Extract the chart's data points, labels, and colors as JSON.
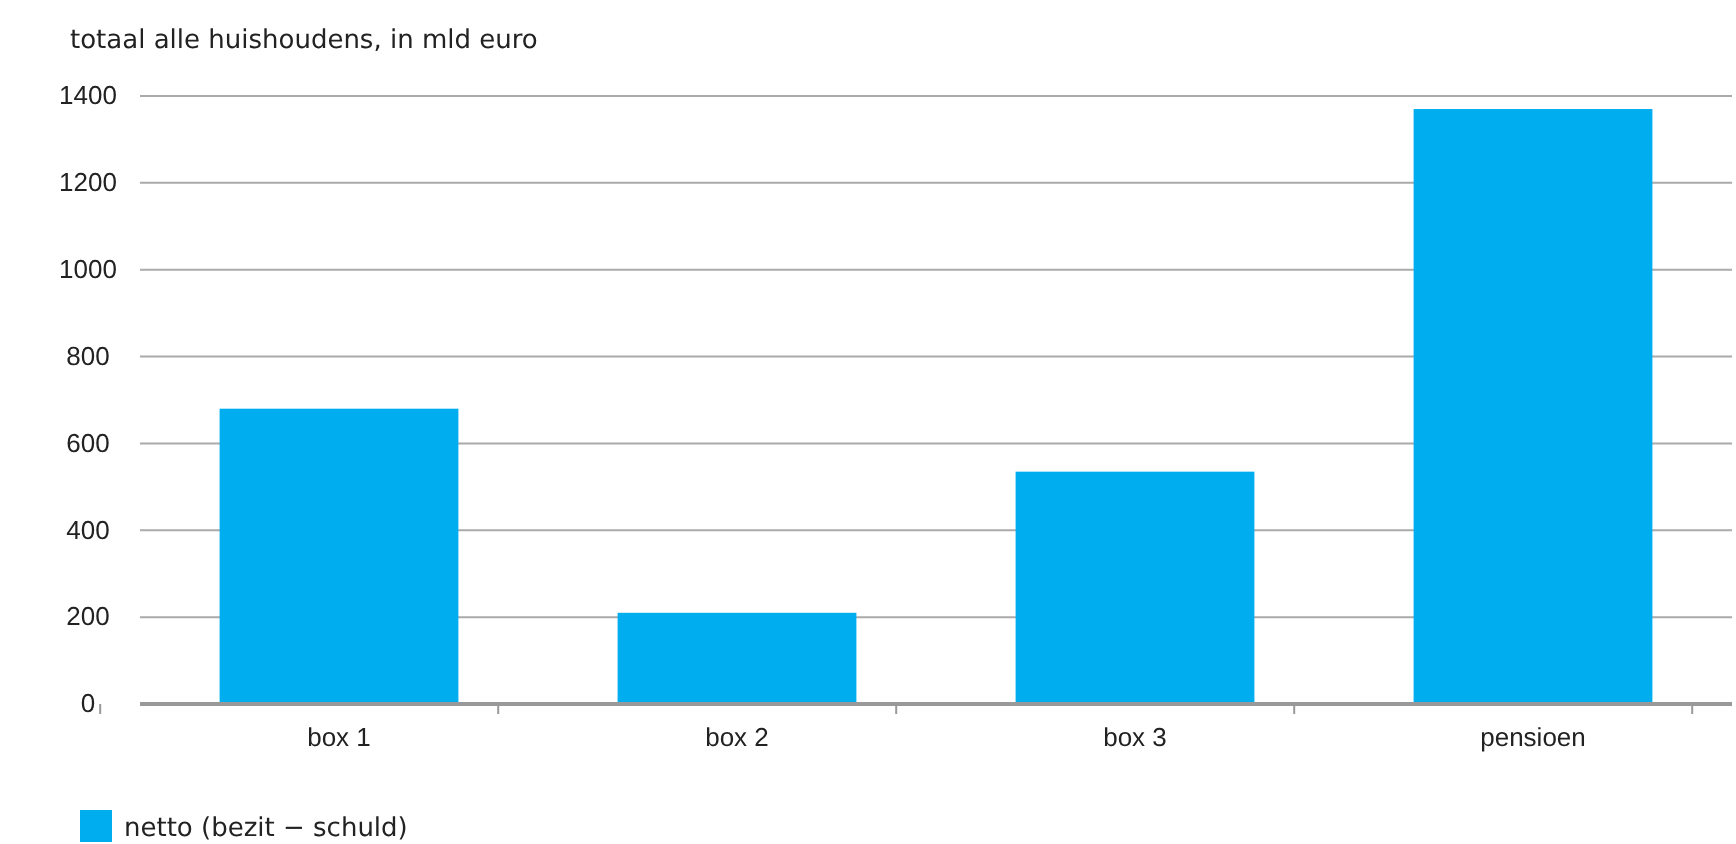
{
  "chart_data": {
    "type": "bar",
    "ylabel": "totaal alle huishoudens, in mld euro",
    "categories": [
      "box 1",
      "box 2",
      "box 3",
      "pensioen"
    ],
    "series": [
      {
        "name": "netto (bezit − schuld)",
        "color": "#00aeef",
        "values": [
          680,
          210,
          535,
          1370
        ]
      }
    ],
    "ylim": [
      0,
      1400
    ],
    "yticks": [
      0,
      200,
      400,
      600,
      800,
      1000,
      1200,
      1400
    ],
    "grid": "y",
    "legend": "bottom left"
  }
}
